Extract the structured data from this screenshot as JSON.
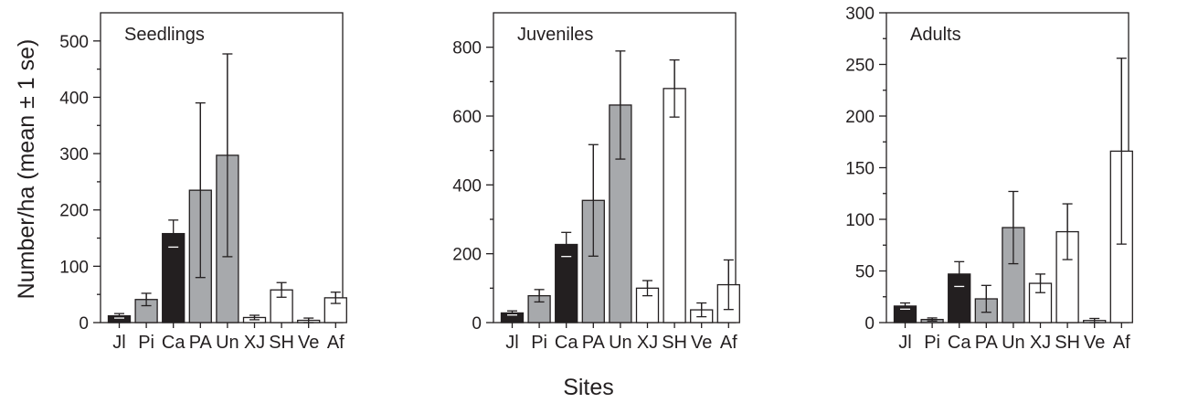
{
  "figure": {
    "ylabel": "Number/ha (mean ± 1 se)",
    "xlabel": "Sites"
  },
  "colors": {
    "black_group": "#231f20",
    "gray_group": "#a7a9ac",
    "white_group": "#ffffff",
    "axis": "#231f20"
  },
  "chart_data": [
    {
      "type": "bar",
      "title": "Seedlings",
      "categories": [
        "Jl",
        "Pi",
        "Ca",
        "PA",
        "Un",
        "XJ",
        "SH",
        "Ve",
        "Af"
      ],
      "values": [
        12,
        41,
        158,
        235,
        297,
        9,
        58,
        4,
        44
      ],
      "errors": [
        4,
        11,
        24,
        155,
        180,
        4,
        13,
        4,
        10
      ],
      "fill_groups": [
        "black",
        "gray",
        "black",
        "gray",
        "gray",
        "white",
        "white",
        "white",
        "white"
      ],
      "ylim": [
        0,
        550
      ],
      "yticks": [
        0,
        100,
        200,
        300,
        400,
        500
      ]
    },
    {
      "type": "bar",
      "title": "Juveniles",
      "categories": [
        "Jl",
        "Pi",
        "Ca",
        "PA",
        "Un",
        "XJ",
        "SH",
        "Ve",
        "Af"
      ],
      "values": [
        28,
        78,
        227,
        355,
        632,
        100,
        680,
        37,
        110
      ],
      "errors": [
        6,
        18,
        35,
        162,
        157,
        22,
        83,
        20,
        72
      ],
      "fill_groups": [
        "black",
        "gray",
        "black",
        "gray",
        "gray",
        "white",
        "white",
        "white",
        "white"
      ],
      "ylim": [
        0,
        900
      ],
      "yticks": [
        0,
        200,
        400,
        600,
        800
      ]
    },
    {
      "type": "bar",
      "title": "Adults",
      "categories": [
        "Jl",
        "Pi",
        "Ca",
        "PA",
        "Un",
        "XJ",
        "SH",
        "Ve",
        "Af"
      ],
      "values": [
        16,
        3,
        47,
        23,
        92,
        38,
        88,
        2,
        166
      ],
      "errors": [
        3,
        1.5,
        12,
        13,
        35,
        9,
        27,
        2,
        90
      ],
      "fill_groups": [
        "black",
        "gray",
        "black",
        "gray",
        "gray",
        "white",
        "white",
        "white",
        "white"
      ],
      "ylim": [
        0,
        300
      ],
      "yticks": [
        0,
        50,
        100,
        150,
        200,
        250,
        300
      ]
    }
  ]
}
